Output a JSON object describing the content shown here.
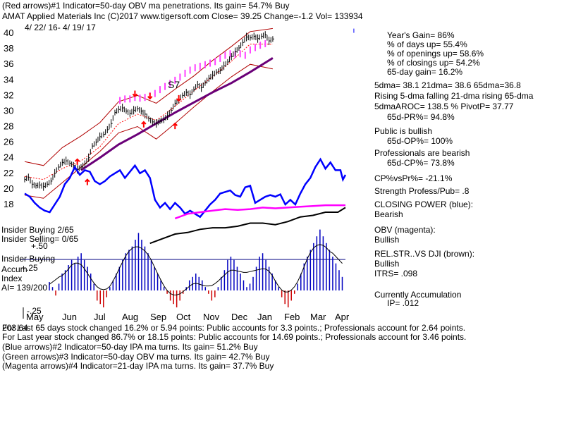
{
  "header": {
    "line1": "(Red arrows)#1 Indicator=50-day OBV ma penetrations. Its gain= 54.7% Buy",
    "line2": "AMAT   Applied Materials Inc  (C)2017 www.tigersoft.com     Close=  39.25  Change=-1.2 Vol= 133934",
    "date_range": "4/ 22/ 16-  4/ 19/ 17"
  },
  "chart_data": {
    "type": "line",
    "title": "AMAT Applied Materials Inc",
    "price_axis": {
      "ticks": [
        40,
        38,
        36,
        34,
        32,
        30,
        28,
        26,
        24,
        22,
        20,
        18
      ],
      "ylim": [
        17,
        41
      ]
    },
    "months": [
      "May",
      "Jun",
      "Jul",
      "Aug",
      "Sep",
      "Oct",
      "Nov",
      "Dec",
      "Jan",
      "Feb",
      "Mar",
      "Apr"
    ],
    "price_close": [
      [
        0,
        21.2
      ],
      [
        3,
        21.5
      ],
      [
        6,
        20.6
      ],
      [
        9,
        20.4
      ],
      [
        12,
        20.5
      ],
      [
        15,
        20.3
      ],
      [
        18,
        20.6
      ],
      [
        21,
        21.0
      ],
      [
        24,
        22.0
      ],
      [
        27,
        22.8
      ],
      [
        30,
        23.4
      ],
      [
        33,
        23.6
      ],
      [
        36,
        23.3
      ],
      [
        39,
        23.0
      ],
      [
        42,
        22.5
      ],
      [
        45,
        22.8
      ],
      [
        48,
        23.2
      ],
      [
        51,
        24.0
      ],
      [
        54,
        25.5
      ],
      [
        57,
        26.0
      ],
      [
        60,
        26.7
      ],
      [
        63,
        27.0
      ],
      [
        66,
        27.6
      ],
      [
        69,
        28.4
      ],
      [
        72,
        29.8
      ],
      [
        75,
        30.2
      ],
      [
        78,
        30.4
      ],
      [
        81,
        30.0
      ],
      [
        84,
        29.7
      ],
      [
        87,
        30.1
      ],
      [
        90,
        30.3
      ],
      [
        93,
        30.0
      ],
      [
        96,
        29.6
      ],
      [
        99,
        29.0
      ],
      [
        102,
        28.6
      ],
      [
        105,
        28.4
      ],
      [
        108,
        28.7
      ],
      [
        111,
        28.9
      ],
      [
        114,
        29.4
      ],
      [
        117,
        30.1
      ],
      [
        120,
        31.0
      ],
      [
        123,
        31.5
      ],
      [
        126,
        32.0
      ],
      [
        129,
        32.4
      ],
      [
        132,
        32.1
      ],
      [
        135,
        32.8
      ],
      [
        138,
        33.4
      ],
      [
        141,
        33.0
      ],
      [
        144,
        33.6
      ],
      [
        147,
        34.2
      ],
      [
        150,
        34.6
      ],
      [
        153,
        35.0
      ],
      [
        156,
        35.2
      ],
      [
        159,
        35.8
      ],
      [
        162,
        36.3
      ],
      [
        165,
        37.0
      ],
      [
        168,
        37.6
      ],
      [
        171,
        38.1
      ],
      [
        174,
        38.8
      ],
      [
        177,
        39.5
      ],
      [
        180,
        39.4
      ],
      [
        183,
        39.6
      ],
      [
        186,
        39.3
      ],
      [
        189,
        39.6
      ],
      [
        192,
        39.8
      ],
      [
        195,
        39.0
      ],
      [
        198,
        39.25
      ]
    ],
    "upper_band": [
      [
        0,
        23.5
      ],
      [
        15,
        23.0
      ],
      [
        30,
        25.3
      ],
      [
        45,
        26.8
      ],
      [
        60,
        28.5
      ],
      [
        75,
        31.2
      ],
      [
        90,
        32.0
      ],
      [
        105,
        31.0
      ],
      [
        120,
        32.8
      ],
      [
        135,
        34.5
      ],
      [
        150,
        36.5
      ],
      [
        165,
        38.3
      ],
      [
        180,
        40.2
      ],
      [
        198,
        40.6
      ]
    ],
    "lower_band": [
      [
        0,
        19.2
      ],
      [
        15,
        18.8
      ],
      [
        30,
        20.8
      ],
      [
        45,
        22.8
      ],
      [
        60,
        24.8
      ],
      [
        75,
        27.2
      ],
      [
        90,
        28.0
      ],
      [
        105,
        26.4
      ],
      [
        120,
        28.4
      ],
      [
        135,
        30.5
      ],
      [
        150,
        32.5
      ],
      [
        165,
        34.4
      ],
      [
        180,
        36.0
      ],
      [
        198,
        35.4
      ]
    ],
    "ma_red": [
      [
        0,
        21.6
      ],
      [
        15,
        21.2
      ],
      [
        30,
        22.6
      ],
      [
        45,
        23.6
      ],
      [
        60,
        25.4
      ],
      [
        75,
        28.4
      ],
      [
        90,
        29.6
      ],
      [
        105,
        28.8
      ],
      [
        120,
        30.6
      ],
      [
        135,
        32.6
      ],
      [
        150,
        34.4
      ],
      [
        165,
        36.4
      ],
      [
        180,
        38.6
      ],
      [
        198,
        38.6
      ]
    ],
    "ma_purple": [
      [
        45,
        22.4
      ],
      [
        60,
        24.0
      ],
      [
        75,
        25.7
      ],
      [
        90,
        27.0
      ],
      [
        105,
        28.4
      ],
      [
        120,
        29.8
      ],
      [
        135,
        31.1
      ],
      [
        150,
        32.4
      ],
      [
        165,
        33.6
      ],
      [
        180,
        35.0
      ],
      [
        198,
        36.8
      ]
    ],
    "ipa_magenta": [
      [
        76,
        31.8
      ],
      [
        80,
        32.0
      ],
      [
        84,
        32.0
      ],
      [
        88,
        32.2
      ],
      [
        92,
        32.1
      ],
      [
        96,
        32.2
      ],
      [
        100,
        32.4
      ],
      [
        104,
        32.7
      ],
      [
        108,
        33.2
      ],
      [
        112,
        33.6
      ],
      [
        116,
        34.0
      ],
      [
        120,
        34.4
      ],
      [
        124,
        34.8
      ],
      [
        128,
        35.3
      ],
      [
        132,
        35.7
      ],
      [
        136,
        36.0
      ],
      [
        140,
        36.2
      ],
      [
        144,
        36.4
      ],
      [
        148,
        36.6
      ],
      [
        152,
        36.8
      ],
      [
        156,
        37.2
      ],
      [
        160,
        37.6
      ],
      [
        164,
        37.8
      ],
      [
        168,
        37.7
      ],
      [
        172,
        37.8
      ],
      [
        176,
        37.6
      ],
      [
        180,
        38.3
      ],
      [
        184,
        38.6
      ],
      [
        188,
        38.9
      ],
      [
        192,
        39.1
      ]
    ],
    "closing_power_blue": [
      [
        0,
        19.4
      ],
      [
        4,
        19.0
      ],
      [
        8,
        18.2
      ],
      [
        12,
        17.6
      ],
      [
        16,
        17.2
      ],
      [
        20,
        17.0
      ],
      [
        24,
        18.0
      ],
      [
        28,
        19.0
      ],
      [
        32,
        20.6
      ],
      [
        36,
        21.4
      ],
      [
        40,
        22.8
      ],
      [
        44,
        21.8
      ],
      [
        48,
        22.4
      ],
      [
        52,
        22.2
      ],
      [
        56,
        21.0
      ],
      [
        60,
        20.6
      ],
      [
        64,
        21.0
      ],
      [
        68,
        21.6
      ],
      [
        72,
        22.0
      ],
      [
        76,
        22.4
      ],
      [
        80,
        21.4
      ],
      [
        84,
        22.2
      ],
      [
        88,
        23.0
      ],
      [
        92,
        22.0
      ],
      [
        96,
        22.4
      ],
      [
        100,
        21.4
      ],
      [
        104,
        18.6
      ],
      [
        108,
        17.6
      ],
      [
        112,
        18.2
      ],
      [
        116,
        17.4
      ],
      [
        120,
        18.2
      ],
      [
        124,
        17.6
      ],
      [
        128,
        16.8
      ],
      [
        132,
        17.2
      ],
      [
        136,
        16.8
      ],
      [
        140,
        16.4
      ],
      [
        144,
        17.2
      ],
      [
        148,
        18.0
      ],
      [
        152,
        18.6
      ],
      [
        156,
        19.4
      ],
      [
        160,
        19.6
      ],
      [
        164,
        19.8
      ],
      [
        168,
        19.2
      ],
      [
        172,
        19.0
      ],
      [
        176,
        20.2
      ],
      [
        180,
        20.4
      ],
      [
        184,
        18.2
      ],
      [
        188,
        18.6
      ],
      [
        192,
        19.0
      ],
      [
        196,
        19.2
      ],
      [
        200,
        19.0
      ],
      [
        204,
        19.3
      ],
      [
        208,
        18.0
      ],
      [
        212,
        18.6
      ],
      [
        216,
        18.0
      ],
      [
        220,
        19.4
      ],
      [
        224,
        20.6
      ],
      [
        228,
        21.4
      ],
      [
        232,
        22.8
      ],
      [
        236,
        23.8
      ],
      [
        240,
        22.6
      ],
      [
        244,
        23.4
      ],
      [
        248,
        22.4
      ],
      [
        252,
        22.4
      ],
      [
        254,
        21.2
      ],
      [
        256,
        21.8
      ]
    ],
    "obv_magenta": [
      [
        120,
        16.2
      ],
      [
        130,
        16.8
      ],
      [
        140,
        17.0
      ],
      [
        150,
        17.2
      ],
      [
        160,
        17.4
      ],
      [
        170,
        17.3
      ],
      [
        180,
        17.4
      ],
      [
        190,
        17.6
      ],
      [
        200,
        17.5
      ],
      [
        210,
        17.6
      ],
      [
        220,
        17.7
      ],
      [
        230,
        17.8
      ],
      [
        240,
        17.9
      ],
      [
        250,
        17.9
      ],
      [
        256,
        17.9
      ]
    ],
    "rel_strength_black": [
      [
        100,
        13.0
      ],
      [
        110,
        13.6
      ],
      [
        120,
        14.2
      ],
      [
        130,
        14.4
      ],
      [
        140,
        14.8
      ],
      [
        150,
        15.0
      ],
      [
        160,
        15.0
      ],
      [
        170,
        15.2
      ],
      [
        180,
        15.6
      ],
      [
        190,
        15.6
      ],
      [
        200,
        15.4
      ],
      [
        210,
        15.8
      ],
      [
        220,
        16.4
      ],
      [
        230,
        16.6
      ],
      [
        240,
        17.0
      ],
      [
        250,
        17.0
      ],
      [
        256,
        17.6
      ]
    ],
    "accumulation_index": {
      "label": "AI= 139/200",
      "levels": [
        "+.50",
        "+.25",
        "-.25"
      ],
      "bars": [
        0.05,
        0.02,
        -0.03,
        0.04,
        0.1,
        0.12,
        0.15,
        0.18,
        0.16,
        0.2,
        0.22,
        0.18,
        0.14,
        0.1,
        0.04,
        -0.06,
        -0.08,
        -0.1,
        -0.04,
        0.02,
        0.06,
        0.1,
        0.14,
        0.18,
        0.22,
        0.24,
        0.26,
        0.3,
        0.34,
        0.3,
        0.26,
        0.22,
        0.18,
        0.14,
        0.1,
        0.06,
        0.02,
        -0.02,
        -0.06,
        -0.08,
        -0.1,
        -0.06,
        -0.02,
        0.02,
        0.06,
        0.08,
        0.1,
        0.08,
        0.06,
        0.02,
        -0.02,
        -0.06,
        -0.04,
        0.02,
        0.08,
        0.12,
        0.18,
        0.2,
        0.18,
        0.14,
        0.1,
        0.06,
        0.02,
        0.04,
        0.08,
        0.14,
        0.2,
        0.22,
        0.18,
        0.14,
        0.1,
        0.06,
        0.02,
        -0.04,
        -0.08,
        -0.1,
        -0.06,
        -0.02,
        0.04,
        0.1,
        0.16,
        0.2,
        0.24,
        0.28,
        0.32,
        0.36,
        0.32,
        0.28,
        0.24,
        0.2,
        0.16,
        0.12,
        0.08
      ]
    },
    "annotation_s7": "S7",
    "upper_arrow_tick": [
      198,
      40.4
    ]
  },
  "right_panel": {
    "years_gain": "Year's Gain= 86%",
    "days_up": "% of days up= 55.4%",
    "openings_up": "% of openings up= 58.6%",
    "closings_up": "% of closings up= 54.2%",
    "gain65": "65-day gain= 16.2%",
    "dma": "5dma= 38.1  21dma= 38.6  65dma=36.8",
    "rising": "Rising 5-dma falling 21-dma rising 65-dma",
    "aroc": "5dmaAROC= 138.5  %  PivotP= 37.77",
    "pr65": "65d-PR%= 94.8%",
    "public": "Public is bullish",
    "op65": "65d-OP%= 100%",
    "professionals": "Professionals are bearish",
    "cp65": "65d-CP%= 73.8%",
    "cpvspr": "CP%vsPr%= -21.1%",
    "strength": "Strength Profess/Pub= .8",
    "cp_title": "CLOSING POWER (blue):",
    "cp_val": "Bearish",
    "obv_title": "OBV (magenta):",
    "obv_val": "Bullish",
    "rel_title": "REL.STR..VS DJI (brown):",
    "rel_val": "Bullish",
    "itrs": "ITRS= .098",
    "accum_title": "Currently Accumulation",
    "ip": "IP=  .012"
  },
  "left_labels": {
    "insider_buying_count": "Insider Buying  2/65",
    "insider_selling_count": "Insider Selling= 0/65",
    "insider_buying": "Insider Buying",
    "accum": "Accum",
    "index": "Index"
  },
  "footer": {
    "line1": "For Last 65 days stock changed  16.2% or  5.94 points:  Public accounts for  3.3 points.;  Professionals account for  2.64 points.",
    "line2": "For Last year stock changed  86.7% or  18.15 points:  Public accounts for  14.69 points.;  Professionals account for  3.46 points.",
    "line3": "(Blue arrows)#2 Indicator=50-day IPA ma turns. Its gain= 51.2% Buy",
    "line4": "(Green arrows)#3 Indicator=50-day OBV ma turns. Its gain= 42.7% Buy",
    "line5": "(Magenta arrows)#4 Indicator=21-day IPA ma turns. Its gain= 37.7% Buy",
    "overlap_value": "203.64"
  },
  "colors": {
    "price": "#000000",
    "bands": "#b00000",
    "ma_red": "#ff0000",
    "ma_purple": "#6a0078",
    "blue": "#0000ff",
    "magenta": "#ff00ff",
    "accum": "#0000c0",
    "accum_neg": "#cc0000",
    "ipa": "#ff40ff"
  }
}
